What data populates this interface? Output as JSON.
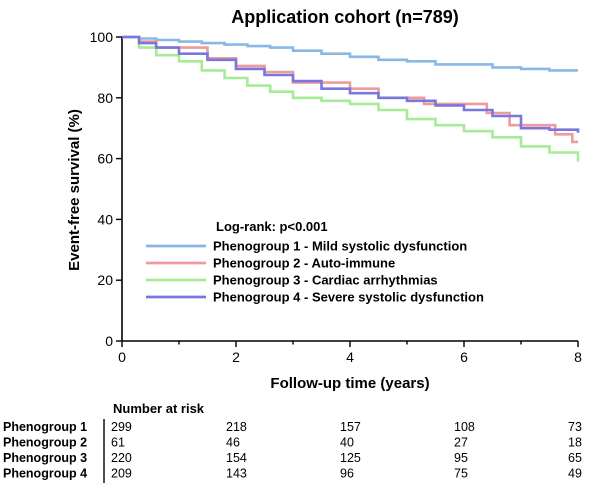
{
  "chart_data": {
    "type": "line",
    "title": "Application cohort (n=789)",
    "xlabel": "Follow-up time (years)",
    "ylabel": "Event-free survival (%)",
    "xlim": [
      0,
      8
    ],
    "ylim": [
      0,
      100
    ],
    "xticks": [
      0,
      2,
      4,
      6,
      8
    ],
    "yticks": [
      0,
      20,
      40,
      60,
      80,
      100
    ],
    "grid": false,
    "legend_title": "Log-rank: p<0.001",
    "legend_position": "bottom-left",
    "series": [
      {
        "name": "Phenogroup 1 - Mild systolic dysfunction",
        "color": "#8ab8e6",
        "x": [
          0,
          0.3,
          0.6,
          1.0,
          1.4,
          1.8,
          2.2,
          2.6,
          3.0,
          3.5,
          4.0,
          4.5,
          5.0,
          5.5,
          6.0,
          6.5,
          7.0,
          7.5,
          8.0
        ],
        "y": [
          100,
          99.5,
          99.0,
          98.5,
          98.0,
          97.5,
          97.0,
          96.5,
          95.5,
          94.5,
          93.5,
          92.5,
          92.0,
          91.0,
          91.0,
          90.0,
          89.5,
          89.0,
          89.0
        ]
      },
      {
        "name": "Phenogroup 2 - Auto-immune",
        "color": "#ef9b9b",
        "x": [
          0,
          0.3,
          0.6,
          1.0,
          1.5,
          2.0,
          2.5,
          3.0,
          3.3,
          3.6,
          4.0,
          4.5,
          4.9,
          5.3,
          5.7,
          6.0,
          6.4,
          6.8,
          7.2,
          7.6,
          7.9,
          8.0
        ],
        "y": [
          100,
          98.5,
          96.5,
          96.5,
          93.0,
          90.5,
          88.5,
          85.0,
          85.0,
          85.0,
          83.0,
          80.0,
          80.0,
          78.0,
          78.0,
          78.0,
          75.0,
          71.0,
          71.0,
          68.0,
          65.5,
          65.5
        ]
      },
      {
        "name": "Phenogroup 3 - Cardiac arrhythmias",
        "color": "#a6ec96",
        "x": [
          0,
          0.3,
          0.6,
          1.0,
          1.4,
          1.8,
          2.2,
          2.6,
          3.0,
          3.5,
          4.0,
          4.5,
          5.0,
          5.5,
          6.0,
          6.5,
          7.0,
          7.5,
          8.0
        ],
        "y": [
          100,
          96.5,
          94.0,
          92.0,
          89.0,
          86.5,
          84.0,
          82.0,
          80.0,
          79.0,
          78.0,
          76.0,
          73.0,
          71.0,
          69.0,
          67.0,
          64.0,
          62.0,
          59.0
        ]
      },
      {
        "name": "Phenogroup 4 - Severe systolic dysfunction",
        "color": "#7b76dc",
        "x": [
          0,
          0.3,
          0.6,
          1.0,
          1.5,
          2.0,
          2.5,
          3.0,
          3.5,
          4.0,
          4.5,
          5.0,
          5.5,
          6.0,
          6.5,
          7.0,
          7.5,
          8.0
        ],
        "y": [
          100,
          98.0,
          96.5,
          94.5,
          92.5,
          89.5,
          87.5,
          85.5,
          83.0,
          81.5,
          80.0,
          79.0,
          77.5,
          76.0,
          74.0,
          70.0,
          69.5,
          68.5
        ]
      }
    ],
    "risk_table": {
      "title": "Number at risk",
      "timepoints": [
        0,
        2,
        4,
        6,
        8
      ],
      "rows": [
        {
          "label": "Phenogroup 1",
          "values": [
            299,
            218,
            157,
            108,
            73
          ]
        },
        {
          "label": "Phenogroup 2",
          "values": [
            61,
            46,
            40,
            27,
            18
          ]
        },
        {
          "label": "Phenogroup 3",
          "values": [
            220,
            154,
            125,
            95,
            65
          ]
        },
        {
          "label": "Phenogroup 4",
          "values": [
            209,
            143,
            96,
            75,
            49
          ]
        }
      ]
    }
  }
}
